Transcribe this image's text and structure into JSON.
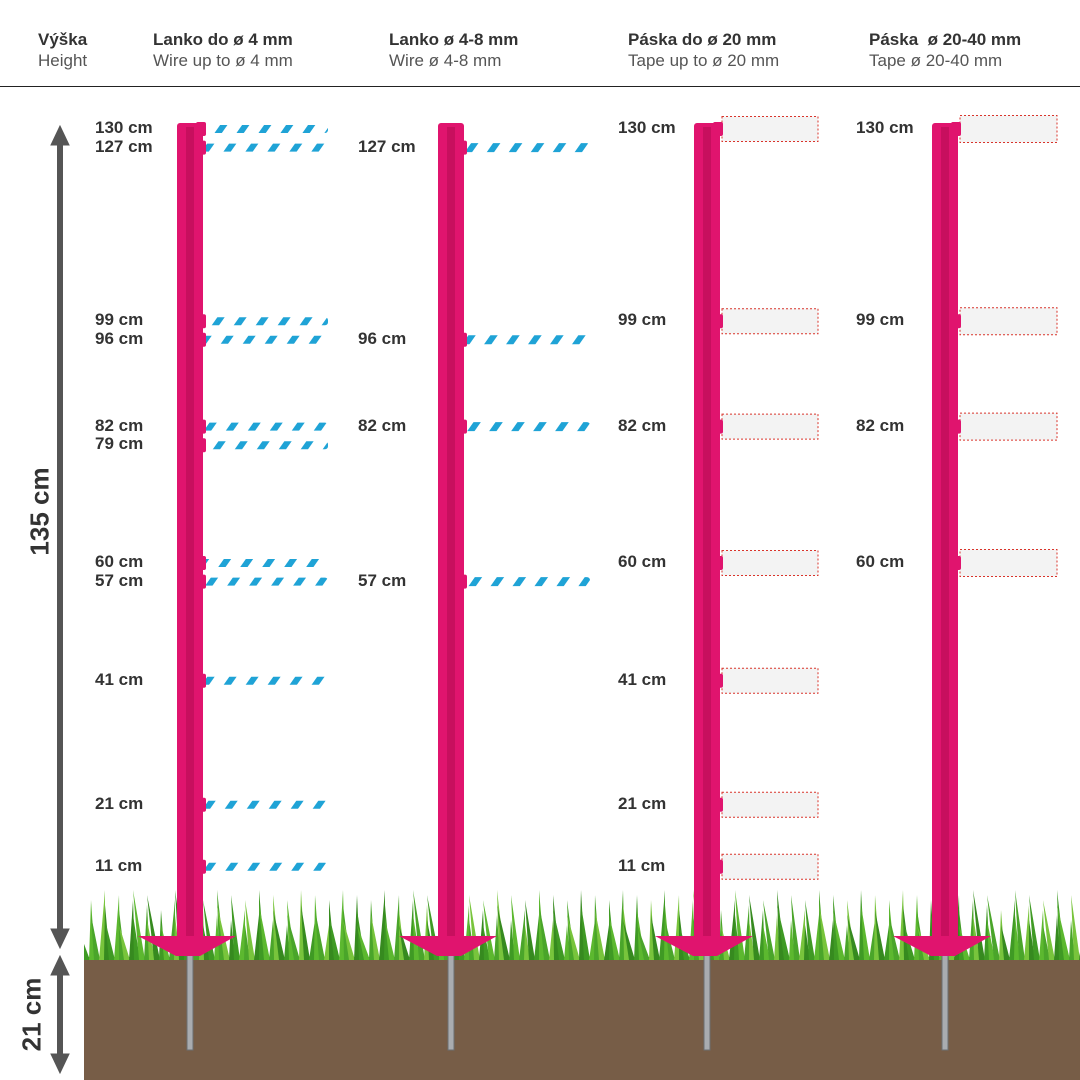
{
  "header": {
    "height": {
      "cz": "Výška",
      "en": "Height"
    },
    "columns": [
      {
        "cz": "Lanko do ø 4 mm",
        "en": "Wire up to ø 4 mm"
      },
      {
        "cz": "Lanko ø 4-8 mm",
        "en": "Wire ø 4-8 mm"
      },
      {
        "cz": "Páska do ø 20 mm",
        "en": "Tape up to ø 20 mm"
      },
      {
        "cz": "Páska  ø 20-40 mm",
        "en": "Tape ø 20-40 mm"
      }
    ]
  },
  "dimensions": {
    "above_ground": "135 cm",
    "below_ground": "21 cm"
  },
  "posts": [
    {
      "kind": "wire-thin",
      "positions": [
        130,
        127,
        99,
        96,
        82,
        79,
        60,
        57,
        41,
        21,
        11
      ],
      "labels": [
        "130 cm",
        "127 cm",
        "99 cm",
        "96 cm",
        "82 cm",
        "79 cm",
        "60 cm",
        "57 cm",
        "41 cm",
        "21 cm",
        "11 cm"
      ]
    },
    {
      "kind": "wire-thick",
      "positions": [
        127,
        96,
        82,
        57
      ],
      "labels": [
        "127 cm",
        "96 cm",
        "82 cm",
        "57 cm"
      ]
    },
    {
      "kind": "tape-narrow",
      "positions": [
        130,
        99,
        82,
        60,
        41,
        21,
        11
      ],
      "labels": [
        "130 cm",
        "99 cm",
        "82 cm",
        "60 cm",
        "41 cm",
        "21 cm",
        "11 cm"
      ]
    },
    {
      "kind": "tape-wide",
      "positions": [
        130,
        99,
        82,
        60
      ],
      "labels": [
        "130 cm",
        "99 cm",
        "82 cm",
        "60 cm"
      ]
    }
  ],
  "colors": {
    "post": "#e0146e",
    "soil": "#775d47",
    "grass": "#4aa52a",
    "wire_blue": "#1fa3d6",
    "tape_edge": "#d9342b",
    "arrow": "#555555"
  }
}
